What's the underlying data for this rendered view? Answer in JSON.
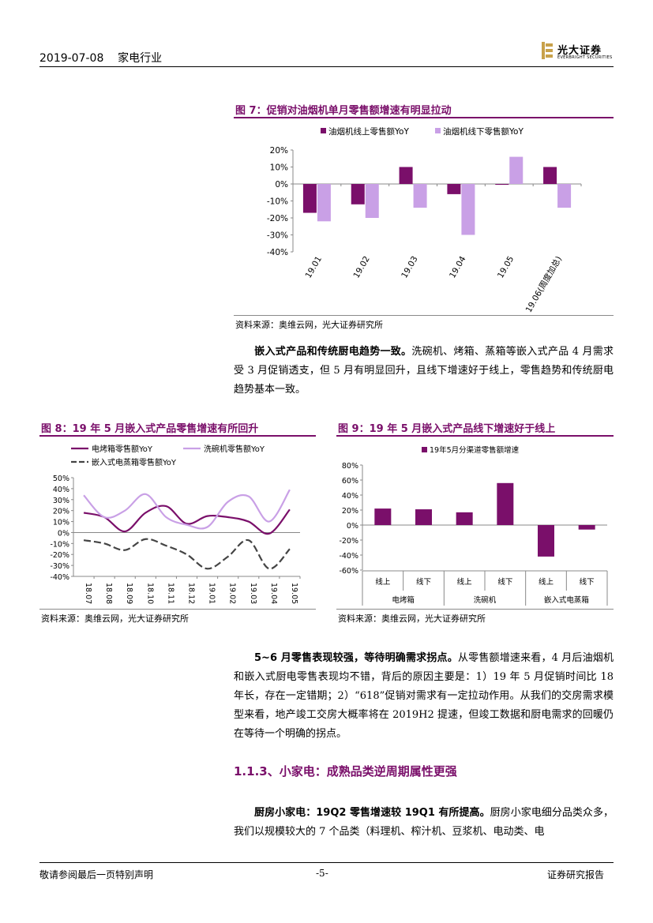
{
  "header": {
    "date_industry": "2019-07-08    家电行业"
  },
  "logo": {
    "cn": "光大证券",
    "en": "EVERBRIGHT SECURITIES"
  },
  "fig7": {
    "title": "图 7：促销对油烟机单月零售额增速有明显拉动",
    "source": "资料来源：奥维云网，光大证券研究所",
    "chart_data": {
      "type": "bar",
      "categories": [
        "19.01",
        "19.02",
        "19.03",
        "19.04",
        "19.05",
        "19.06(周度加总)"
      ],
      "series": [
        {
          "name": "油烟机线上零售额YoY",
          "values": [
            -17,
            -12,
            10,
            -6,
            -0.5,
            10
          ],
          "color": "#7a0f6a"
        },
        {
          "name": "油烟机线下零售额YoY",
          "values": [
            -22,
            -20,
            -14,
            -30,
            16,
            -14
          ],
          "color": "#c9a0e6"
        }
      ],
      "ylim": [
        -40,
        20
      ],
      "yticks": [
        "20%",
        "10%",
        "0%",
        "-10%",
        "-20%",
        "-30%",
        "-40%"
      ],
      "legend": "top"
    }
  },
  "para1": {
    "bold": "嵌入式产品和传统厨电趋势一致。",
    "text": "洗碗机、烤箱、蒸箱等嵌入式产品 4 月需求受 3 月促销透支，但 5 月有明显回升，且线下增速好于线上，零售趋势和传统厨电趋势基本一致。"
  },
  "fig8": {
    "title": "图 8：19 年 5 月嵌入式产品零售增速有所回升",
    "source": "资料来源：奥维云网，光大证券研究所",
    "chart_data": {
      "type": "line",
      "x": [
        "18.07",
        "18.08",
        "18.09",
        "18.10",
        "18.11",
        "18.12",
        "19.01",
        "19.02",
        "19.03",
        "19.04",
        "19.05"
      ],
      "series": [
        {
          "name": "电烤箱零售额YoY",
          "values": [
            18,
            14,
            1,
            18,
            24,
            8,
            15,
            14,
            10,
            -1,
            21
          ],
          "color": "#7a0f6a"
        },
        {
          "name": "洗碗机零售额YoY",
          "values": [
            34,
            14,
            20,
            35,
            14,
            7,
            5,
            28,
            33,
            10,
            39
          ],
          "color": "#c9a0e6"
        },
        {
          "name": "嵌入式电蒸箱零售额YoY",
          "values": [
            -7,
            -10,
            -16,
            -6,
            -12,
            -20,
            -33,
            -22,
            -7,
            -33,
            -15
          ],
          "color": "#444444"
        }
      ],
      "ylim": [
        -40,
        50
      ],
      "yticks": [
        "50%",
        "40%",
        "30%",
        "20%",
        "10%",
        "0%",
        "-10%",
        "-20%",
        "-30%",
        "-40%"
      ],
      "legend": "top"
    }
  },
  "fig9": {
    "title": "图 9：19 年 5 月嵌入式产品线下增速好于线上",
    "source": "资料来源：奥维云网，光大证券研究所",
    "chart_data": {
      "type": "bar",
      "categories": [
        "线上",
        "线下",
        "线上",
        "线下",
        "线上",
        "线下"
      ],
      "groups": [
        "电烤箱",
        "洗碗机",
        "嵌入式电蒸箱"
      ],
      "series": [
        {
          "name": "19年5月分渠道零售额增速",
          "values": [
            22,
            21,
            17,
            56,
            -42,
            -6
          ],
          "color": "#7a0f6a"
        }
      ],
      "ylim": [
        -60,
        80
      ],
      "yticks": [
        "80%",
        "60%",
        "40%",
        "20%",
        "0%",
        "-20%",
        "-40%",
        "-60%"
      ],
      "legend": "top"
    }
  },
  "para2": {
    "bold": "5~6 月零售表现较强，等待明确需求拐点。",
    "text": "从零售额增速来看，4 月后油烟机和嵌入式厨电零售表现均不错，背后的原因主要是：1）19 年 5 月促销时间比 18 年长，存在一定错期；2）“618”促销对需求有一定拉动作用。从我们的交房需求模型来看，地产竣工交房大概率将在 2019H2 提速，但竣工数据和厨电需求的回暖仍在等待一个明确的拐点。"
  },
  "section": {
    "title": "1.1.3、小家电：成熟品类逆周期属性更强"
  },
  "para3": {
    "bold": "厨房小家电：19Q2 零售增速较 19Q1 有所提高。",
    "text": "厨房小家电细分品类众多，我们以规模较大的 7 个品类（料理机、榨汁机、豆浆机、电动类、电"
  },
  "footer": {
    "left": "敬请参阅最后一页特别声明",
    "center": "-5-",
    "right": "证券研究报告"
  }
}
